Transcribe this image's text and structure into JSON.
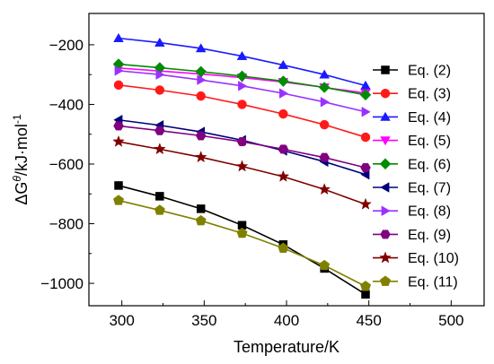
{
  "chart_data": {
    "type": "line",
    "xlabel": "Temperature/K",
    "ylabel": "ΔG",
    "ylabel_sup": "θ",
    "ylabel_rest": "/kJ·mol",
    "ylabel_sup2": "-1",
    "xlim": [
      280,
      520
    ],
    "ylim": [
      -1075,
      -95
    ],
    "xticks": [
      300,
      350,
      400,
      450,
      500
    ],
    "yticks": [
      -200,
      -400,
      -600,
      -800,
      -1000
    ],
    "xtick_labels": [
      "300",
      "350",
      "400",
      "450",
      "500"
    ],
    "ytick_labels": [
      "−200",
      "−400",
      "−600",
      "−800",
      "−1000"
    ],
    "grid": false,
    "legend_position": "right",
    "x": [
      298,
      323,
      348,
      373,
      398,
      423,
      448
    ],
    "series": [
      {
        "name": "Eq. (2)",
        "color": "#000000",
        "marker": "square",
        "values": [
          -672,
          -708,
          -750,
          -805,
          -870,
          -950,
          -1037
        ]
      },
      {
        "name": "Eq. (3)",
        "color": "#ff1a1a",
        "marker": "circle",
        "values": [
          -335,
          -352,
          -372,
          -400,
          -432,
          -468,
          -510
        ]
      },
      {
        "name": "Eq. (4)",
        "color": "#1a1aff",
        "marker": "triangle-up",
        "values": [
          -178,
          -193,
          -212,
          -238,
          -268,
          -300,
          -337
        ]
      },
      {
        "name": "Eq. (5)",
        "color": "#ff00ff",
        "marker": "triangle-down",
        "values": [
          -278,
          -288,
          -298,
          -310,
          -325,
          -343,
          -362
        ]
      },
      {
        "name": "Eq. (6)",
        "color": "#008c00",
        "marker": "diamond",
        "values": [
          -265,
          -277,
          -290,
          -305,
          -322,
          -343,
          -368
        ]
      },
      {
        "name": "Eq. (7)",
        "color": "#00007a",
        "marker": "triangle-left",
        "values": [
          -452,
          -470,
          -492,
          -520,
          -555,
          -592,
          -635
        ]
      },
      {
        "name": "Eq. (8)",
        "color": "#9b30ff",
        "marker": "triangle-right",
        "values": [
          -287,
          -300,
          -318,
          -338,
          -363,
          -392,
          -425
        ]
      },
      {
        "name": "Eq. (9)",
        "color": "#800080",
        "marker": "hexagon",
        "values": [
          -472,
          -488,
          -505,
          -525,
          -550,
          -578,
          -612
        ]
      },
      {
        "name": "Eq. (10)",
        "color": "#800000",
        "marker": "star",
        "values": [
          -525,
          -550,
          -577,
          -608,
          -642,
          -685,
          -735
        ]
      },
      {
        "name": "Eq. (11)",
        "color": "#808000",
        "marker": "pentagon",
        "values": [
          -722,
          -755,
          -790,
          -832,
          -882,
          -940,
          -1010
        ]
      }
    ]
  }
}
